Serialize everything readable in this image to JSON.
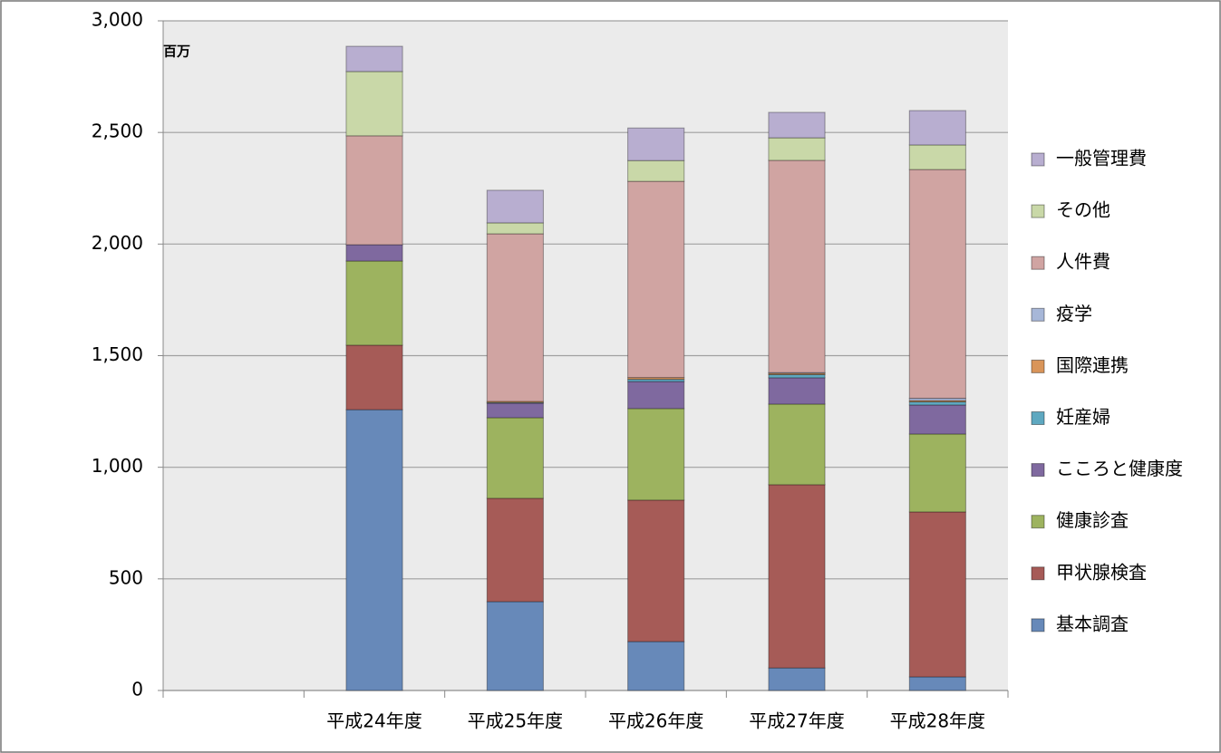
{
  "chart_data": {
    "type": "stacked_bar",
    "annotation": "百万",
    "categories": [
      null,
      "平成24年度",
      "平成25年度",
      "平成26年度",
      "平成27年度",
      "平成28年度"
    ],
    "series": [
      {
        "name": "基本調査",
        "color": "#6789b9",
        "values": [
          null,
          1258,
          398,
          219,
          101,
          61
        ]
      },
      {
        "name": "甲状腺検査",
        "color": "#a65b57",
        "values": [
          null,
          289,
          463,
          634,
          821,
          739
        ]
      },
      {
        "name": "健康診査",
        "color": "#9db35f",
        "values": [
          null,
          377,
          361,
          410,
          361,
          349
        ]
      },
      {
        "name": "こころと健康度",
        "color": "#7f699f",
        "values": [
          null,
          73,
          65,
          121,
          118,
          130
        ]
      },
      {
        "name": "妊産婦",
        "color": "#5ea8c0",
        "values": [
          null,
          0,
          3,
          10,
          14,
          14
        ]
      },
      {
        "name": "国際連携",
        "color": "#d9955a",
        "values": [
          null,
          0,
          5,
          8,
          6,
          6
        ]
      },
      {
        "name": "疫学",
        "color": "#a7b7d8",
        "values": [
          null,
          0,
          0,
          0,
          3,
          10
        ]
      },
      {
        "name": "人件費",
        "color": "#d0a4a2",
        "values": [
          null,
          488,
          751,
          879,
          951,
          1025
        ]
      },
      {
        "name": "その他",
        "color": "#c9d8a8",
        "values": [
          null,
          288,
          49,
          93,
          101,
          110
        ]
      },
      {
        "name": "一般管理費",
        "color": "#b8aed0",
        "values": [
          null,
          113,
          146,
          146,
          114,
          154
        ]
      }
    ],
    "ylim": [
      0,
      3000
    ],
    "yticks": [
      0,
      500,
      {
        "value": 1000,
        "label": "1,000"
      },
      {
        "value": 1500,
        "label": "1,500"
      },
      {
        "value": 2000,
        "label": "2,000"
      },
      {
        "value": 2500,
        "label": "2,500"
      },
      {
        "value": 3000,
        "label": "3,000"
      }
    ],
    "grid": true,
    "legend": "right"
  }
}
